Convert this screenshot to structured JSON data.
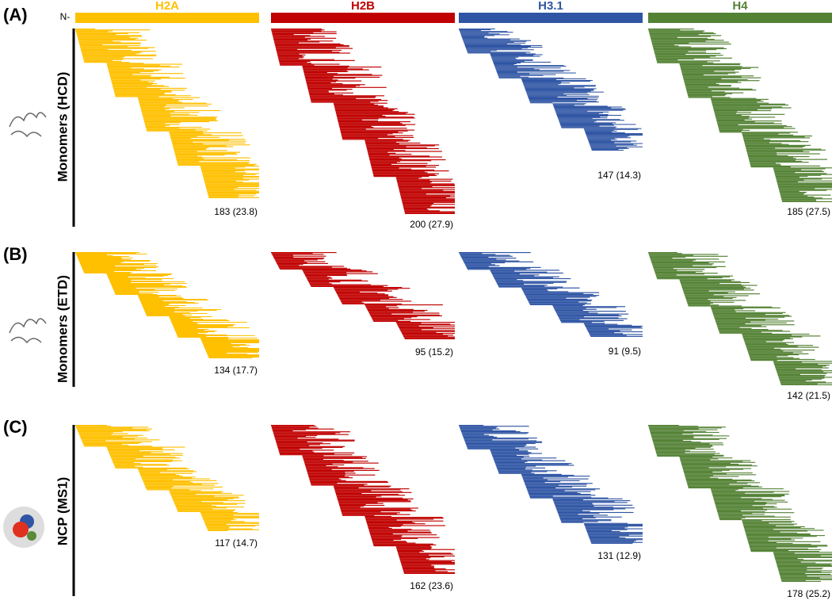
{
  "n_label": "N-",
  "columns": [
    {
      "label": "H2A",
      "color": "#ffc000"
    },
    {
      "label": "H2B",
      "color": "#c00000"
    },
    {
      "label": "H3.1",
      "color": "#2f55a4"
    },
    {
      "label": "H4",
      "color": "#548235"
    }
  ],
  "panels": [
    {
      "id": "(A)",
      "label": "Monomers (HCD)",
      "cells": [
        "183 (23.8)",
        "200 (27.9)",
        "147 (14.3)",
        "185 (27.5)"
      ]
    },
    {
      "id": "(B)",
      "label": "Monomers (ETD)",
      "cells": [
        "134 (17.7)",
        "95 (15.2)",
        "91 (9.5)",
        "142 (21.5)"
      ]
    },
    {
      "id": "(C)",
      "label": "NCP (MS1)",
      "cells": [
        "117 (14.7)",
        "162 (23.6)",
        "131 (12.9)",
        "178 (25.2)"
      ]
    }
  ]
}
